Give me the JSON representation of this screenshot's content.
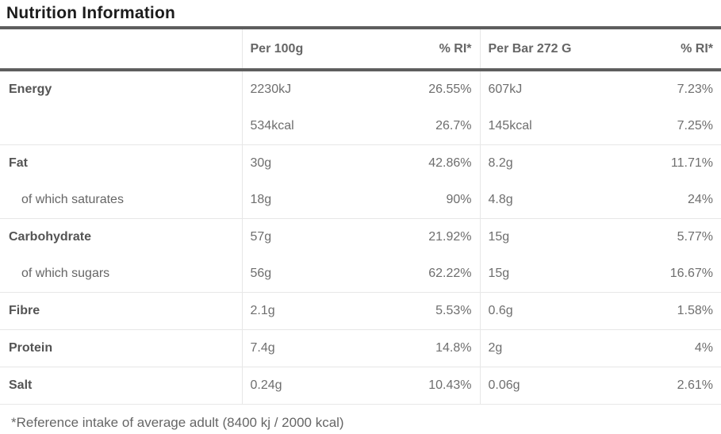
{
  "chart_data": {
    "type": "table",
    "title": "Nutrition Information",
    "columns": [
      "",
      "Per 100g",
      "% RI*",
      "Per Bar 272 G",
      "% RI*"
    ],
    "rows": [
      {
        "label": "Energy",
        "per_100g": "2230kJ",
        "ri_100g": "26.55%",
        "per_bar": "607kJ",
        "ri_bar": "7.23%"
      },
      {
        "label": "",
        "per_100g": "534kcal",
        "ri_100g": "26.7%",
        "per_bar": "145kcal",
        "ri_bar": "7.25%"
      },
      {
        "label": "Fat",
        "per_100g": "30g",
        "ri_100g": "42.86%",
        "per_bar": "8.2g",
        "ri_bar": "11.71%"
      },
      {
        "label": "of which saturates",
        "per_100g": "18g",
        "ri_100g": "90%",
        "per_bar": "4.8g",
        "ri_bar": "24%"
      },
      {
        "label": "Carbohydrate",
        "per_100g": "57g",
        "ri_100g": "21.92%",
        "per_bar": "15g",
        "ri_bar": "5.77%"
      },
      {
        "label": "of which sugars",
        "per_100g": "56g",
        "ri_100g": "62.22%",
        "per_bar": "15g",
        "ri_bar": "16.67%"
      },
      {
        "label": "Fibre",
        "per_100g": "2.1g",
        "ri_100g": "5.53%",
        "per_bar": "0.6g",
        "ri_bar": "1.58%"
      },
      {
        "label": "Protein",
        "per_100g": "7.4g",
        "ri_100g": "14.8%",
        "per_bar": "2g",
        "ri_bar": "4%"
      },
      {
        "label": "Salt",
        "per_100g": "0.24g",
        "ri_100g": "10.43%",
        "per_bar": "0.06g",
        "ri_bar": "2.61%"
      }
    ],
    "footnote": "*Reference intake of average adult (8400 kj / 2000 kcal)",
    "layout": {
      "grid": "light vertical separators before Per 100g and Per Bar columns, light horizontal separators between nutrient sections",
      "heavy_rules": "above and below header row"
    }
  },
  "colors": {
    "rule_heavy": "#5e5e5e",
    "rule_light": "#e7e7e7",
    "title_text": "#1c1c1c",
    "header_text": "#666666",
    "label_text": "#545454",
    "value_text": "#6e6e6e"
  }
}
